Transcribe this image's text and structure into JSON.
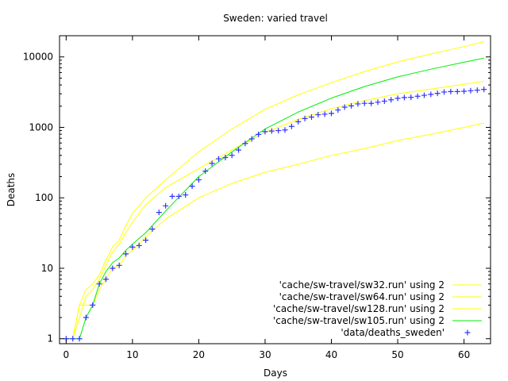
{
  "chart_data": {
    "type": "line",
    "title": "Sweden: varied travel",
    "xlabel": "Days",
    "ylabel": "Deaths",
    "xlim": [
      -1,
      64
    ],
    "ylim": [
      0.85,
      20000
    ],
    "yscale": "log",
    "x_ticks": [
      0,
      10,
      20,
      30,
      40,
      50,
      60
    ],
    "y_ticks": [
      1,
      10,
      100,
      1000,
      10000
    ],
    "y_tick_labels": [
      "1",
      "10",
      "100",
      "1000",
      "10000"
    ],
    "grid": false,
    "legend_position": "bottom-right",
    "series": [
      {
        "name": "'cache/sw-travel/sw32.run'  using 2",
        "color": "#ffff00",
        "style": "line",
        "x": [
          0,
          1,
          2,
          3,
          4,
          5,
          6,
          7,
          8,
          9,
          10,
          12,
          15,
          20,
          25,
          30,
          35,
          40,
          45,
          50,
          55,
          60,
          63
        ],
        "y": [
          1,
          1,
          3,
          3,
          3,
          5,
          7,
          10,
          11,
          15,
          18,
          28,
          50,
          100,
          160,
          230,
          300,
          400,
          500,
          650,
          800,
          1000,
          1150
        ]
      },
      {
        "name": "'cache/sw-travel/sw64.run'  using 2",
        "color": "#ffff00",
        "style": "line",
        "x": [
          0,
          1,
          2,
          3,
          4,
          5,
          6,
          7,
          8,
          9,
          10,
          12,
          15,
          20,
          25,
          30,
          35,
          40,
          45,
          50,
          55,
          60,
          63
        ],
        "y": [
          1,
          1,
          3,
          5,
          6,
          8,
          13,
          20,
          25,
          40,
          60,
          100,
          180,
          450,
          950,
          1800,
          2900,
          4300,
          6200,
          8500,
          11000,
          14000,
          16500
        ]
      },
      {
        "name": "'cache/sw-travel/sw128.run' using 2",
        "color": "#ffff00",
        "style": "line",
        "x": [
          0,
          1,
          2,
          3,
          4,
          5,
          6,
          7,
          8,
          9,
          10,
          12,
          15,
          20,
          25,
          30,
          35,
          40,
          45,
          50,
          55,
          60,
          63
        ],
        "y": [
          1,
          1,
          2,
          4,
          5,
          7,
          11,
          17,
          22,
          32,
          45,
          80,
          140,
          260,
          480,
          850,
          1300,
          1850,
          2400,
          3000,
          3500,
          4100,
          4500
        ]
      },
      {
        "name": "'cache/sw-travel/sw105.run' using 2",
        "color": "#00ee00",
        "style": "line",
        "x": [
          0,
          1,
          2,
          3,
          4,
          5,
          6,
          7,
          8,
          9,
          10,
          12,
          15,
          20,
          25,
          30,
          35,
          40,
          45,
          50,
          55,
          60,
          63
        ],
        "y": [
          1,
          1,
          1,
          2,
          3,
          6,
          9,
          12,
          14,
          18,
          22,
          32,
          65,
          200,
          450,
          950,
          1650,
          2600,
          3800,
          5200,
          6700,
          8400,
          9600
        ]
      },
      {
        "name": "'data/deaths_sweden'",
        "color": "#3333ff",
        "style": "points",
        "x": [
          0,
          1,
          2,
          3,
          4,
          5,
          6,
          7,
          8,
          9,
          10,
          11,
          12,
          13,
          14,
          15,
          16,
          17,
          18,
          19,
          20,
          21,
          22,
          23,
          24,
          25,
          26,
          27,
          28,
          29,
          30,
          31,
          32,
          33,
          34,
          35,
          36,
          37,
          38,
          39,
          40,
          41,
          42,
          43,
          44,
          45,
          46,
          47,
          48,
          49,
          50,
          51,
          52,
          53,
          54,
          55,
          56,
          57,
          58,
          59,
          60,
          61,
          62,
          63
        ],
        "y": [
          1,
          1,
          1,
          2,
          3,
          6,
          7,
          10,
          11,
          16,
          20,
          21,
          25,
          36,
          62,
          77,
          105,
          105,
          110,
          146,
          180,
          239,
          308,
          358,
          373,
          401,
          477,
          591,
          687,
          793,
          870,
          887,
          899,
          919,
          1033,
          1203,
          1333,
          1400,
          1511,
          1540,
          1580,
          1765,
          1937,
          2021,
          2152,
          2194,
          2192,
          2274,
          2355,
          2462,
          2586,
          2653,
          2669,
          2769,
          2854,
          2941,
          3040,
          3175,
          3220,
          3225,
          3255,
          3313,
          3376,
          3460
        ]
      }
    ]
  }
}
